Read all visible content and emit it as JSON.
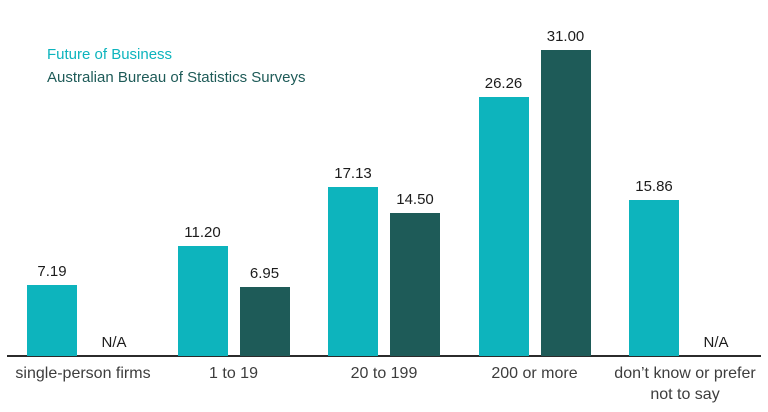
{
  "legend": {
    "series1": "Future of Business",
    "series2": "Australian Bureau of Statistics Surveys"
  },
  "colors": {
    "series1": "#0db4bd",
    "series2": "#1e5b58",
    "value_label": "#1c1c1c",
    "category_label": "#3d3d3d",
    "axis_line": "#2b2b2b",
    "background": "#ffffff"
  },
  "chart_data": {
    "type": "bar",
    "title": "",
    "xlabel": "",
    "ylabel": "",
    "ylim": [
      0,
      31
    ],
    "grid": false,
    "legend_position": "top-left",
    "value_labels_shown": true,
    "na_text": "N/A",
    "categories": [
      "single-person firms",
      "1 to 19",
      "20 to 199",
      "200 or more",
      "don’t know or prefer not to say"
    ],
    "series": [
      {
        "name": "Future of Business",
        "color": "#0db4bd",
        "values": [
          7.19,
          11.2,
          17.13,
          26.26,
          15.86
        ],
        "display_labels": [
          "7.19",
          "11.20",
          "17.13",
          "26.26",
          "15.86"
        ]
      },
      {
        "name": "Australian Bureau of Statistics Surveys",
        "color": "#1e5b58",
        "values": [
          null,
          6.95,
          14.5,
          31.0,
          null
        ],
        "display_labels": [
          "N/A",
          "6.95",
          "14.50",
          "31.00",
          "N/A"
        ]
      }
    ]
  }
}
